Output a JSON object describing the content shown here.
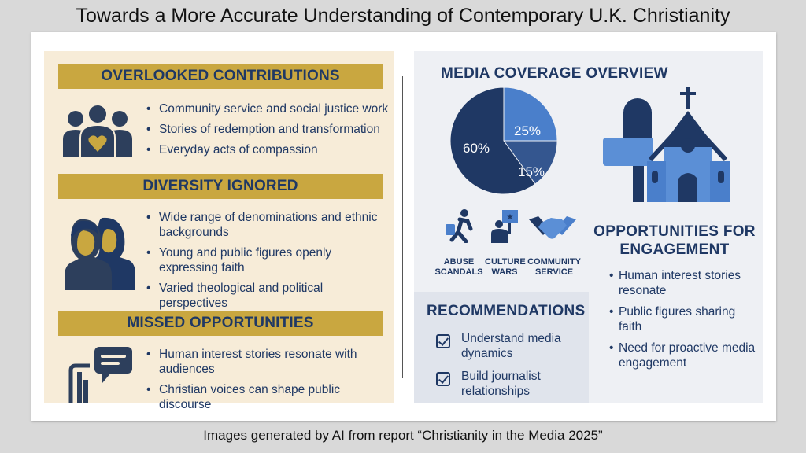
{
  "page_title": "Towards a More Accurate Understanding of Contemporary U.K. Christianity",
  "caption": "Images generated by AI from report “Christianity in the Media 2025”",
  "left": {
    "sections": [
      {
        "heading": "OVERLOOKED CONTRIBUTIONS",
        "icon": "community-heart-icon",
        "bullets": [
          "Community service and social justice work",
          "Stories of redemption and transformation",
          "Everyday acts of compassion"
        ]
      },
      {
        "heading": "DIVERSITY IGNORED",
        "icon": "diverse-people-icon",
        "bullets": [
          "Wide range of denominations and ethnic backgrounds",
          "Young and public figures openly expressing faith",
          "Varied theological and political perspectives"
        ]
      },
      {
        "heading": "MISSED OPPORTUNITIES",
        "icon": "speech-bubble-icon",
        "bullets": [
          "Human interest stories resonate with audiences",
          "Christian voices can shape public discourse"
        ]
      }
    ]
  },
  "right": {
    "media_title": "MEDIA COVERAGE OVERVIEW",
    "pie": {
      "slices": [
        {
          "label": "60%",
          "value": 60,
          "color": "#1f3864"
        },
        {
          "label": "25%",
          "value": 25,
          "color": "#4a7fcb"
        },
        {
          "label": "15%",
          "value": 15,
          "color": "#34568f"
        }
      ]
    },
    "topics": [
      {
        "label": "ABUSE SCANDALS",
        "icon": "person-running-icon"
      },
      {
        "label": "CULTURE WARS",
        "icon": "protest-sign-icon"
      },
      {
        "label": "COMMUNITY SERVICE",
        "icon": "handshake-icon"
      }
    ],
    "opportunities": {
      "title": "OPPORTUNITIES FOR ENGAGEMENT",
      "bullets": [
        "Human interest stories resonate",
        "Public figures sharing faith",
        "Need for proactive media engagement"
      ]
    },
    "recommendations": {
      "title": "RECOMMENDATIONS",
      "items": [
        "Understand media dynamics",
        "Build journalist relationships"
      ]
    }
  },
  "colors": {
    "navy": "#1f3864",
    "gold": "#c9a740",
    "cream": "#f7ecd8",
    "blue": "#4a7fcb"
  }
}
